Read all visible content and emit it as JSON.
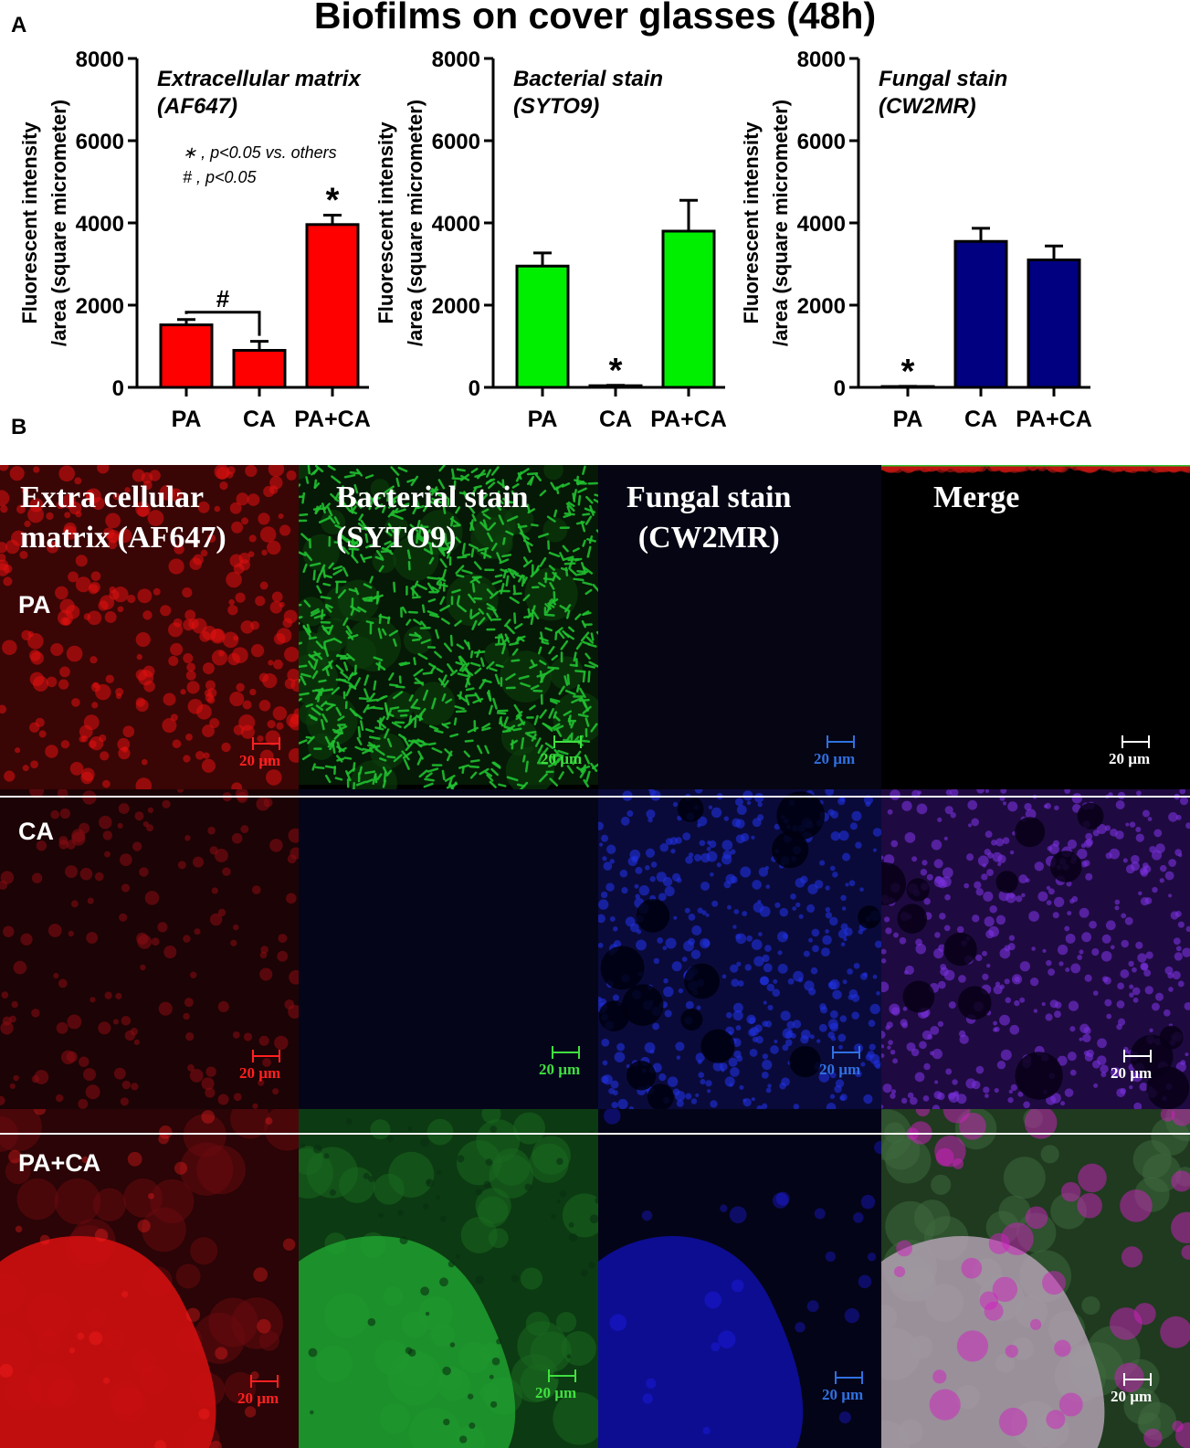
{
  "title": "Biofilms on cover glasses (48h)",
  "panel_a_label": "A",
  "panel_b_label": "B",
  "legend_notes": [
    "∗ , p<0.05 vs. others",
    "# , p<0.05"
  ],
  "chart_data": [
    {
      "type": "bar",
      "title": "Extracellular matrix (AF647)",
      "title_lines": [
        "Extracellular matrix",
        "(AF647)"
      ],
      "ylabel_lines": [
        "Fluorescent intensity",
        "/area (square micrometer)"
      ],
      "xlabel": "",
      "categories": [
        "PA",
        "CA",
        "PA+CA"
      ],
      "values": [
        1520,
        900,
        3960
      ],
      "errors": [
        130,
        220,
        230
      ],
      "ylim": [
        0,
        8000
      ],
      "yticks": [
        0,
        2000,
        4000,
        6000,
        8000
      ],
      "color": "#ff0000",
      "significance": [
        {
          "category": "PA+CA",
          "mark": "*"
        },
        {
          "bracket": [
            "PA",
            "CA"
          ],
          "mark": "#"
        }
      ]
    },
    {
      "type": "bar",
      "title": "Bacterial stain (SYTO9)",
      "title_lines": [
        "Bacterial stain",
        "(SYTO9)"
      ],
      "ylabel_lines": [
        "Fluorescent intensity",
        "/area (square micrometer)"
      ],
      "xlabel": "",
      "categories": [
        "PA",
        "CA",
        "PA+CA"
      ],
      "values": [
        2950,
        40,
        3800
      ],
      "errors": [
        320,
        10,
        750
      ],
      "ylim": [
        0,
        8000
      ],
      "yticks": [
        0,
        2000,
        4000,
        6000,
        8000
      ],
      "color": "#00ee00",
      "significance": [
        {
          "category": "CA",
          "mark": "*"
        }
      ]
    },
    {
      "type": "bar",
      "title": "Fungal stain (CW2MR)",
      "title_lines": [
        "Fungal stain",
        "(CW2MR)"
      ],
      "ylabel_lines": [
        "Fluorescent intensity",
        "/area (square micrometer)"
      ],
      "xlabel": "",
      "categories": [
        "PA",
        "CA",
        "PA+CA"
      ],
      "values": [
        20,
        3550,
        3100
      ],
      "errors": [
        5,
        320,
        340
      ],
      "ylim": [
        0,
        8000
      ],
      "yticks": [
        0,
        2000,
        4000,
        6000,
        8000
      ],
      "color": "#000080",
      "significance": [
        {
          "category": "PA",
          "mark": "*"
        }
      ]
    }
  ],
  "micrographs": {
    "column_headers": [
      "Extra cellular\nmatrix (AF647)",
      "Bacterial stain\n(SYTO9)",
      "Fungal stain\n(CW2MR)",
      "Merge"
    ],
    "row_labels": [
      "PA",
      "CA",
      "PA+CA"
    ],
    "scale_bar_label": "20 µm",
    "channel_colors": {
      "matrix": "#e01010",
      "bacteria": "#20c030",
      "fungi": "#2030e0",
      "merge_ca": "#7a30e0"
    }
  }
}
